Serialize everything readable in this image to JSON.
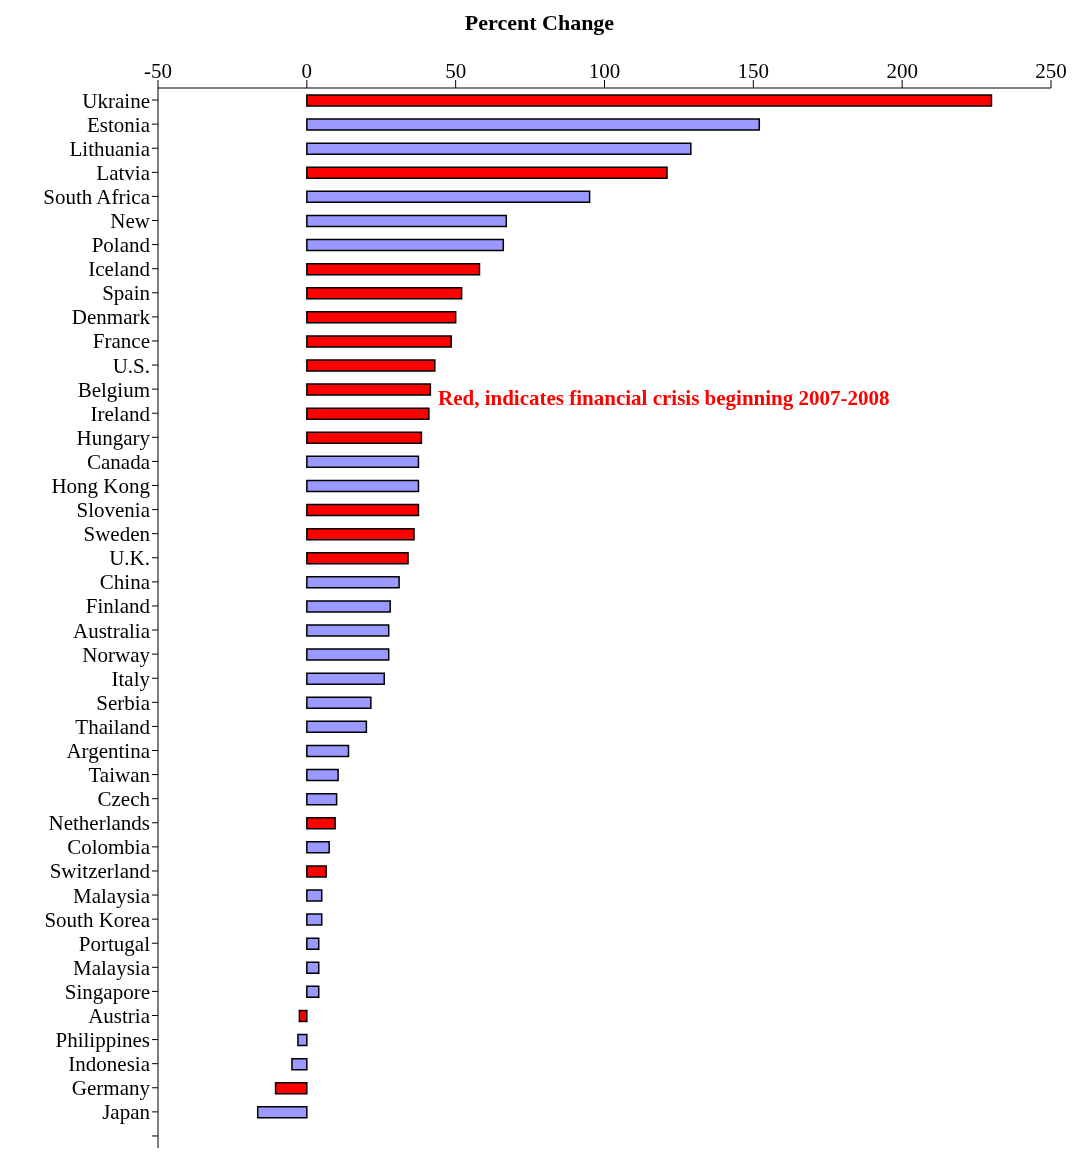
{
  "chart_data": {
    "type": "bar",
    "orientation": "horizontal",
    "xlabel": "Percent Change",
    "categories": [
      "Ukraine",
      "Estonia",
      "Lithuania",
      "Latvia",
      "South Africa",
      "New",
      "Poland",
      "Iceland",
      "Spain",
      "Denmark",
      "France",
      "U.S.",
      "Belgium",
      "Ireland",
      "Hungary",
      "Canada",
      "Hong Kong",
      "Slovenia",
      "Sweden",
      "U.K.",
      "China",
      "Finland",
      "Australia",
      "Norway",
      "Italy",
      "Serbia",
      "Thailand",
      "Argentina",
      "Taiwan",
      "Czech",
      "Netherlands",
      "Colombia",
      "Switzerland",
      "Malaysia",
      "South Korea",
      "Portugal",
      "Malaysia",
      "Singapore",
      "Austria",
      "Philippines",
      "Indonesia",
      "Germany",
      "Japan",
      null
    ],
    "values": [
      230,
      152,
      129,
      121,
      95,
      67,
      66,
      58,
      52,
      50,
      48.5,
      43,
      41.5,
      41,
      38.5,
      37.5,
      37.5,
      37.5,
      36,
      34,
      31,
      28,
      27.5,
      27.5,
      26,
      21.5,
      20,
      14,
      10.5,
      10,
      9.5,
      7.5,
      6.5,
      5,
      5,
      4,
      4,
      4,
      -2.5,
      -3,
      -5,
      -10.5,
      -16.5,
      null
    ],
    "colors": [
      "#ff0000",
      "#9999ff",
      "#9999ff",
      "#ff0000",
      "#9999ff",
      "#9999ff",
      "#9999ff",
      "#ff0000",
      "#ff0000",
      "#ff0000",
      "#ff0000",
      "#ff0000",
      "#ff0000",
      "#ff0000",
      "#ff0000",
      "#9999ff",
      "#9999ff",
      "#ff0000",
      "#ff0000",
      "#ff0000",
      "#9999ff",
      "#9999ff",
      "#9999ff",
      "#9999ff",
      "#9999ff",
      "#9999ff",
      "#9999ff",
      "#9999ff",
      "#9999ff",
      "#9999ff",
      "#ff0000",
      "#9999ff",
      "#ff0000",
      "#9999ff",
      "#9999ff",
      "#9999ff",
      "#9999ff",
      "#9999ff",
      "#ff0000",
      "#9999ff",
      "#9999ff",
      "#ff0000",
      "#9999ff",
      "#9999ff"
    ],
    "xlim": [
      -50,
      250
    ],
    "xticks": [
      -50,
      0,
      50,
      100,
      150,
      200,
      250
    ],
    "grid": false,
    "legend": false,
    "annotations": [
      "Red, indicates financial crisis beginning 2007-2008"
    ]
  }
}
